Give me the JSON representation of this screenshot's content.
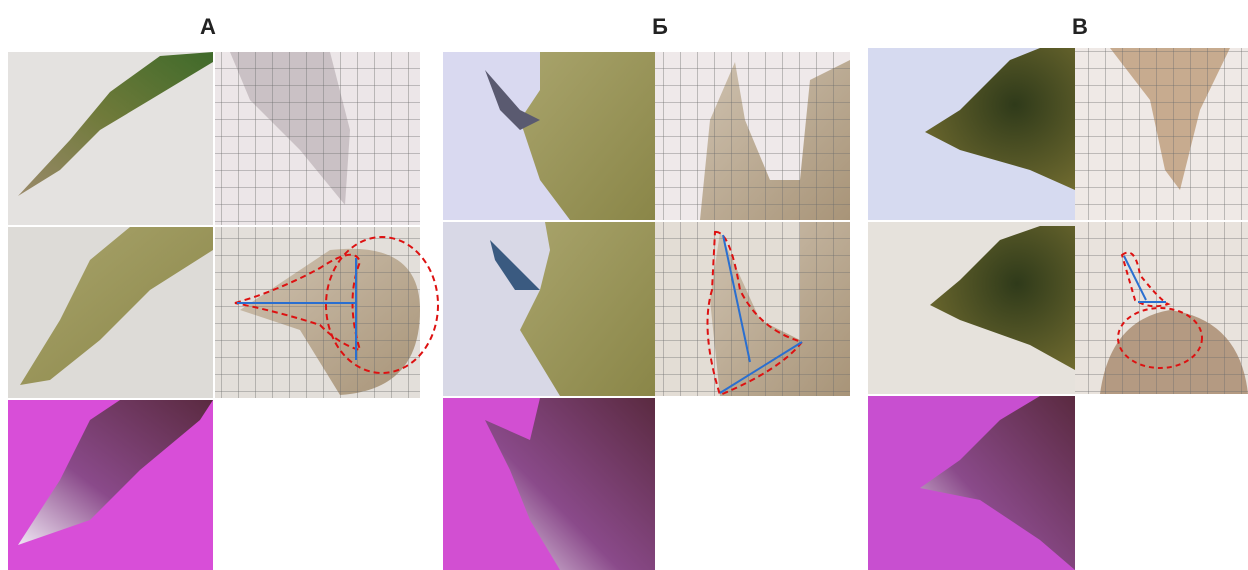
{
  "panels": [
    {
      "label": "А"
    },
    {
      "label": "Б"
    },
    {
      "label": "В"
    }
  ]
}
